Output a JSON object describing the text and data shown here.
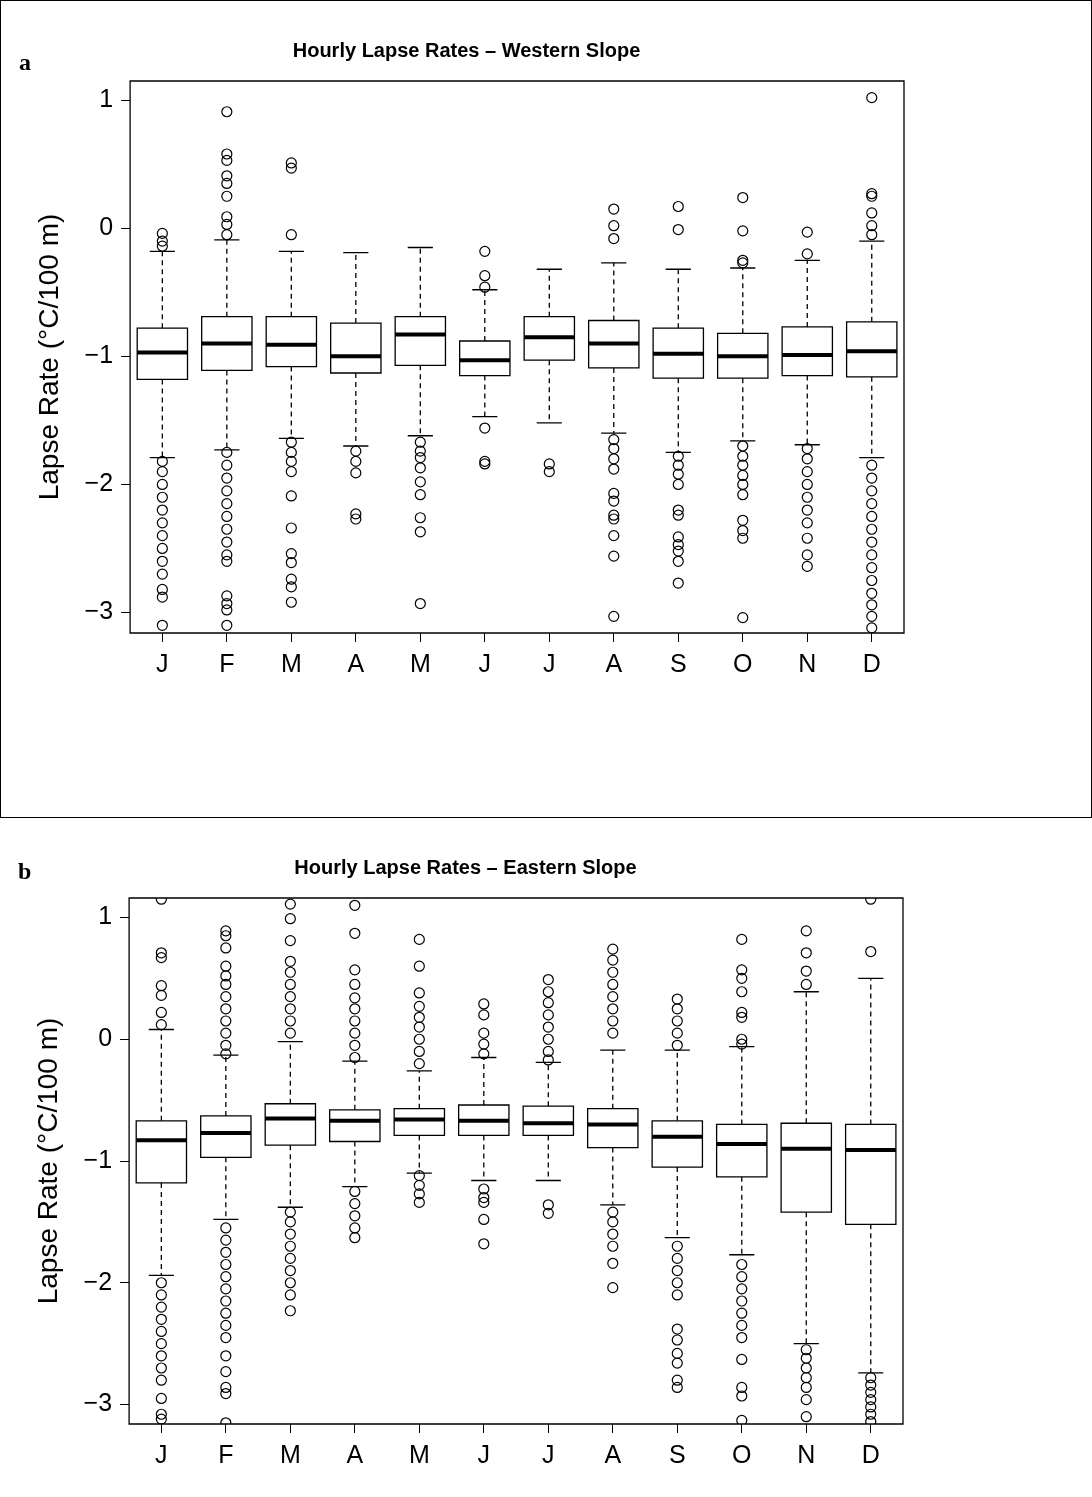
{
  "chart_data": [
    {
      "type": "box",
      "title": "Hourly Lapse Rates – Western Slope",
      "ylabel": "Lapse Rate (°C/100 m)",
      "annotations": [
        "a"
      ],
      "grid": false,
      "ylim": [
        -3.16,
        1.15
      ],
      "yticks": [
        -3,
        -2,
        -1,
        0,
        1
      ],
      "categories": [
        "J",
        "F",
        "M",
        "A",
        "M",
        "J",
        "J",
        "A",
        "S",
        "O",
        "N",
        "D"
      ],
      "boxes": [
        {
          "low": -1.79,
          "q1": -1.18,
          "median": -0.97,
          "q3": -0.78,
          "high": -0.18,
          "outliers": [
            -0.04,
            -0.1,
            -0.14,
            -1.82,
            -1.9,
            -2.0,
            -2.1,
            -2.2,
            -2.3,
            -2.4,
            -2.5,
            -2.6,
            -2.7,
            -2.82,
            -2.88,
            -3.1
          ]
        },
        {
          "low": -1.73,
          "q1": -1.11,
          "median": -0.9,
          "q3": -0.69,
          "high": -0.09,
          "outliers": [
            0.91,
            0.58,
            0.53,
            0.41,
            0.35,
            0.25,
            0.09,
            0.03,
            -0.05,
            -1.75,
            -1.85,
            -1.95,
            -2.05,
            -2.15,
            -2.25,
            -2.35,
            -2.45,
            -2.55,
            -2.6,
            -2.87,
            -2.93,
            -2.98,
            -3.1
          ]
        },
        {
          "low": -1.64,
          "q1": -1.08,
          "median": -0.91,
          "q3": -0.69,
          "high": -0.18,
          "outliers": [
            0.51,
            0.47,
            -0.05,
            -1.67,
            -1.75,
            -1.82,
            -1.9,
            -2.09,
            -2.34,
            -2.54,
            -2.61,
            -2.74,
            -2.8,
            -2.92
          ]
        },
        {
          "low": -1.7,
          "q1": -1.13,
          "median": -1.0,
          "q3": -0.74,
          "high": -0.19,
          "outliers": [
            -1.74,
            -1.82,
            -1.91,
            -2.23,
            -2.27
          ]
        },
        {
          "low": -1.62,
          "q1": -1.07,
          "median": -0.83,
          "q3": -0.69,
          "high": -0.15,
          "outliers": [
            -1.67,
            -1.74,
            -1.79,
            -1.87,
            -1.98,
            -2.08,
            -2.26,
            -2.37,
            -2.93
          ]
        },
        {
          "low": -1.47,
          "q1": -1.15,
          "median": -1.03,
          "q3": -0.88,
          "high": -0.48,
          "outliers": [
            -0.18,
            -0.37,
            -0.46,
            -1.56,
            -1.82,
            -1.84
          ]
        },
        {
          "low": -1.52,
          "q1": -1.03,
          "median": -0.85,
          "q3": -0.69,
          "high": -0.32,
          "outliers": [
            -1.84,
            -1.9
          ]
        },
        {
          "low": -1.6,
          "q1": -1.09,
          "median": -0.9,
          "q3": -0.72,
          "high": -0.27,
          "outliers": [
            0.15,
            0.02,
            -0.08,
            -1.65,
            -1.72,
            -1.8,
            -1.88,
            -2.07,
            -2.13,
            -2.24,
            -2.27,
            -2.4,
            -2.56,
            -3.03
          ]
        },
        {
          "low": -1.75,
          "q1": -1.17,
          "median": -0.98,
          "q3": -0.78,
          "high": -0.32,
          "outliers": [
            0.17,
            -0.01,
            -1.78,
            -1.85,
            -1.92,
            -2.0,
            -2.2,
            -2.24,
            -2.41,
            -2.47,
            -2.52,
            -2.6,
            -2.77
          ]
        },
        {
          "low": -1.66,
          "q1": -1.17,
          "median": -1.0,
          "q3": -0.82,
          "high": -0.31,
          "outliers": [
            0.24,
            -0.02,
            -0.25,
            -0.27,
            -1.7,
            -1.78,
            -1.85,
            -1.93,
            -2.0,
            -2.08,
            -2.28,
            -2.36,
            -2.42,
            -3.04
          ]
        },
        {
          "low": -1.69,
          "q1": -1.15,
          "median": -0.99,
          "q3": -0.77,
          "high": -0.25,
          "outliers": [
            -0.03,
            -0.2,
            -1.72,
            -1.8,
            -1.9,
            -2.0,
            -2.1,
            -2.2,
            -2.3,
            -2.42,
            -2.55,
            -2.64
          ]
        },
        {
          "low": -1.79,
          "q1": -1.16,
          "median": -0.96,
          "q3": -0.73,
          "high": -0.1,
          "outliers": [
            1.02,
            0.27,
            0.25,
            0.12,
            0.02,
            -0.05,
            -1.85,
            -1.95,
            -2.05,
            -2.15,
            -2.25,
            -2.35,
            -2.45,
            -2.55,
            -2.65,
            -2.75,
            -2.85,
            -2.94,
            -3.03,
            -3.12
          ]
        }
      ]
    },
    {
      "type": "box",
      "title": "Hourly Lapse Rates – Eastern Slope",
      "ylabel": "Lapse Rate (°C/100 m)",
      "annotations": [
        "b"
      ],
      "grid": false,
      "ylim": [
        -3.16,
        1.16
      ],
      "yticks": [
        -3,
        -2,
        -1,
        0,
        1
      ],
      "categories": [
        "J",
        "F",
        "M",
        "A",
        "M",
        "J",
        "J",
        "A",
        "S",
        "O",
        "N",
        "D"
      ],
      "boxes": [
        {
          "low": -1.94,
          "q1": -1.18,
          "median": -0.83,
          "q3": -0.67,
          "high": 0.08,
          "outliers": [
            1.15,
            0.71,
            0.67,
            0.44,
            0.36,
            0.22,
            0.12,
            -2.0,
            -2.1,
            -2.2,
            -2.3,
            -2.4,
            -2.5,
            -2.6,
            -2.7,
            -2.8,
            -2.95,
            -3.08,
            -3.12
          ]
        },
        {
          "low": -1.48,
          "q1": -0.97,
          "median": -0.77,
          "q3": -0.63,
          "high": -0.13,
          "outliers": [
            0.89,
            0.85,
            0.75,
            0.6,
            0.52,
            0.45,
            0.35,
            0.25,
            0.15,
            0.05,
            -0.05,
            -0.12,
            -1.55,
            -1.65,
            -1.75,
            -1.85,
            -1.95,
            -2.05,
            -2.15,
            -2.25,
            -2.35,
            -2.45,
            -2.6,
            -2.73,
            -2.86,
            -2.91,
            -3.15
          ]
        },
        {
          "low": -1.38,
          "q1": -0.87,
          "median": -0.65,
          "q3": -0.53,
          "high": -0.02,
          "outliers": [
            1.11,
            0.99,
            0.81,
            0.64,
            0.55,
            0.45,
            0.35,
            0.25,
            0.15,
            0.05,
            -1.42,
            -1.5,
            -1.6,
            -1.7,
            -1.8,
            -1.9,
            -2.0,
            -2.1,
            -2.23
          ]
        },
        {
          "low": -1.21,
          "q1": -0.84,
          "median": -0.67,
          "q3": -0.58,
          "high": -0.18,
          "outliers": [
            1.1,
            0.87,
            0.57,
            0.45,
            0.34,
            0.25,
            0.15,
            0.05,
            -0.05,
            -0.15,
            -1.25,
            -1.35,
            -1.45,
            -1.55,
            -1.63
          ]
        },
        {
          "low": -1.1,
          "q1": -0.79,
          "median": -0.66,
          "q3": -0.57,
          "high": -0.26,
          "outliers": [
            0.82,
            0.6,
            0.38,
            0.27,
            0.18,
            0.1,
            0.0,
            -0.1,
            -0.2,
            -1.12,
            -1.2,
            -1.27,
            -1.34
          ]
        },
        {
          "low": -1.16,
          "q1": -0.79,
          "median": -0.67,
          "q3": -0.54,
          "high": -0.15,
          "outliers": [
            0.29,
            0.2,
            0.05,
            -0.04,
            -0.12,
            -1.23,
            -1.3,
            -1.34,
            -1.48,
            -1.68
          ]
        },
        {
          "low": -1.16,
          "q1": -0.79,
          "median": -0.69,
          "q3": -0.55,
          "high": -0.19,
          "outliers": [
            0.49,
            0.39,
            0.3,
            0.2,
            0.1,
            0.0,
            -0.1,
            -0.17,
            -1.36,
            -1.43
          ]
        },
        {
          "low": -1.36,
          "q1": -0.89,
          "median": -0.7,
          "q3": -0.57,
          "high": -0.09,
          "outliers": [
            0.74,
            0.65,
            0.55,
            0.45,
            0.35,
            0.25,
            0.15,
            0.05,
            -1.42,
            -1.5,
            -1.6,
            -1.7,
            -1.84,
            -2.04
          ]
        },
        {
          "low": -1.63,
          "q1": -1.05,
          "median": -0.8,
          "q3": -0.67,
          "high": -0.09,
          "outliers": [
            0.33,
            0.25,
            0.15,
            0.05,
            -0.05,
            -1.7,
            -1.8,
            -1.9,
            -2.0,
            -2.1,
            -2.38,
            -2.47,
            -2.58,
            -2.66,
            -2.8,
            -2.86
          ]
        },
        {
          "low": -1.77,
          "q1": -1.13,
          "median": -0.86,
          "q3": -0.7,
          "high": -0.06,
          "outliers": [
            0.82,
            0.57,
            0.5,
            0.39,
            0.22,
            0.18,
            0.0,
            -0.04,
            -1.85,
            -1.95,
            -2.05,
            -2.15,
            -2.25,
            -2.35,
            -2.45,
            -2.63,
            -2.86,
            -2.93,
            -3.13
          ]
        },
        {
          "low": -2.5,
          "q1": -1.42,
          "median": -0.9,
          "q3": -0.69,
          "high": 0.39,
          "outliers": [
            0.89,
            0.71,
            0.56,
            0.45,
            -2.55,
            -2.62,
            -2.7,
            -2.78,
            -2.86,
            -2.96,
            -3.1
          ]
        },
        {
          "low": -2.74,
          "q1": -1.52,
          "median": -0.91,
          "q3": -0.7,
          "high": 0.5,
          "outliers": [
            1.15,
            0.72,
            -2.78,
            -2.84,
            -2.9,
            -2.96,
            -3.02,
            -3.08,
            -3.14
          ]
        }
      ]
    }
  ]
}
